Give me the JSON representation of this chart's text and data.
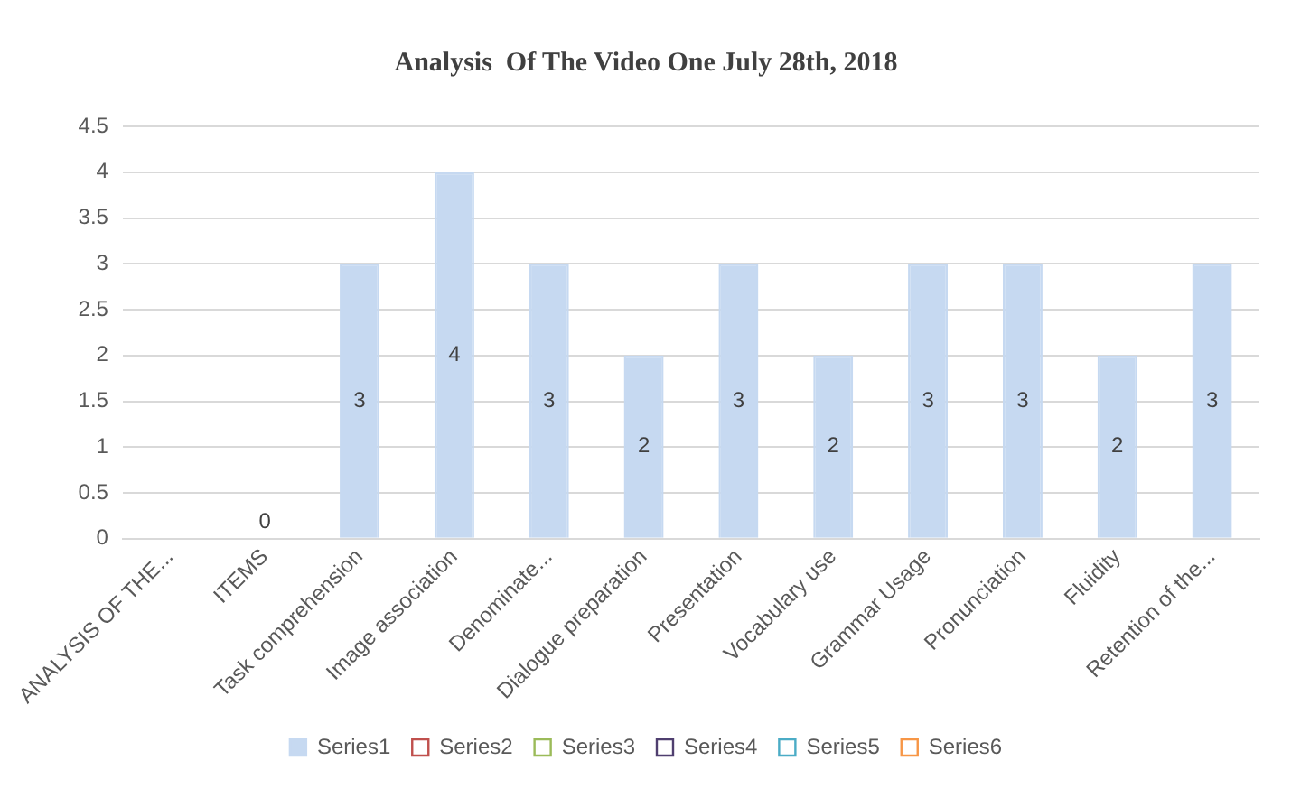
{
  "chart_data": {
    "type": "bar",
    "title": "Analysis  Of The Video One July 28th, 2018",
    "categories": [
      "ANALYSIS OF THE...",
      "ITEMS",
      "Task comprehension",
      "Image association",
      "Denominate...",
      "Dialogue preparation",
      "Presentation",
      "Vocabulary use",
      "Grammar Usage",
      "Pronunciation",
      "Fluidity",
      "Retention of the..."
    ],
    "series": [
      {
        "name": "Series1",
        "color": "#c6d9f1",
        "values": [
          null,
          0,
          3,
          4,
          3,
          2,
          3,
          2,
          3,
          3,
          2,
          3
        ]
      },
      {
        "name": "Series2",
        "color": "#c0504d",
        "values": [
          null,
          null,
          null,
          null,
          null,
          null,
          null,
          null,
          null,
          null,
          null,
          null
        ]
      },
      {
        "name": "Series3",
        "color": "#9bbb59",
        "values": [
          null,
          null,
          null,
          null,
          null,
          null,
          null,
          null,
          null,
          null,
          null,
          null
        ]
      },
      {
        "name": "Series4",
        "color": "#4f3f6f",
        "values": [
          null,
          null,
          null,
          null,
          null,
          null,
          null,
          null,
          null,
          null,
          null,
          null
        ]
      },
      {
        "name": "Series5",
        "color": "#4bacc6",
        "values": [
          null,
          null,
          null,
          null,
          null,
          null,
          null,
          null,
          null,
          null,
          null,
          null
        ]
      },
      {
        "name": "Series6",
        "color": "#f79646",
        "values": [
          null,
          null,
          null,
          null,
          null,
          null,
          null,
          null,
          null,
          null,
          null,
          null
        ]
      }
    ],
    "ylim": [
      0,
      4.5
    ],
    "yticks": [
      0,
      0.5,
      1,
      1.5,
      2,
      2.5,
      3,
      3.5,
      4,
      4.5
    ],
    "grid": "y",
    "legend": "bottom",
    "data_labels": true
  }
}
